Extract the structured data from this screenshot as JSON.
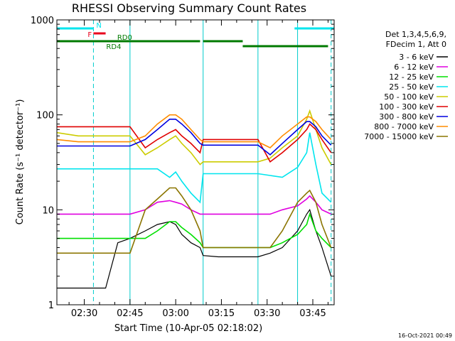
{
  "chart_data": {
    "type": "line",
    "title": "RHESSI Observing Summary Count Rates",
    "xlabel": "Start Time (10-Apr-05 02:18:02)",
    "ylabel": "Count Rate (s⁻¹ detector⁻¹)",
    "y_scale": "log",
    "ylim": [
      1,
      1000
    ],
    "xlim": [
      "02:21",
      "03:52"
    ],
    "y_tick_labels": [
      "1",
      "10",
      "100",
      "1000"
    ],
    "x_tick_labels": [
      "02:30",
      "02:45",
      "03:00",
      "03:15",
      "03:30",
      "03:45"
    ],
    "footer_date": "16-Oct-2021 00:49",
    "legend": {
      "header": [
        "Det 1,3,4,5,6,9,",
        "FDecim 1, Att 0"
      ],
      "placement": "right"
    },
    "flags": [
      {
        "label": "N",
        "color": "#00e5ee",
        "segments": [
          [
            "02:21",
            "02:33"
          ],
          [
            "03:39",
            "03:52"
          ]
        ]
      },
      {
        "label": "F",
        "color": "#e8001c",
        "segments": [
          [
            "02:33",
            "02:37"
          ]
        ]
      },
      {
        "label": "RD0",
        "color": "#007a00",
        "segments": [
          [
            "02:33",
            "02:43"
          ]
        ]
      },
      {
        "label": "RD4",
        "color": "#007a00",
        "segments": [
          [
            "02:21",
            "02:45"
          ],
          [
            "02:45",
            "03:08"
          ],
          [
            "03:09",
            "03:22"
          ],
          [
            "03:22",
            "03:50"
          ]
        ]
      }
    ],
    "x_markers": [
      {
        "time": "02:33",
        "style": "dashed",
        "color": "#00cccc"
      },
      {
        "time": "02:45",
        "style": "solid",
        "color": "#00cccc"
      },
      {
        "time": "03:09",
        "style": "solid",
        "color": "#00cccc"
      },
      {
        "time": "03:27",
        "style": "solid",
        "color": "#00cccc"
      },
      {
        "time": "03:40",
        "style": "solid",
        "color": "#00cccc"
      },
      {
        "time": "03:51",
        "style": "dashed",
        "color": "#00cccc"
      }
    ],
    "x": [
      "02:21",
      "02:28",
      "02:33",
      "02:37",
      "02:41",
      "02:45",
      "02:50",
      "02:54",
      "02:58",
      "03:00",
      "03:02",
      "03:05",
      "03:08",
      "03:09",
      "03:14",
      "03:19",
      "03:24",
      "03:27",
      "03:31",
      "03:35",
      "03:40",
      "03:43",
      "03:44",
      "03:46",
      "03:48",
      "03:51"
    ],
    "series": [
      {
        "name": "3 - 6 keV",
        "color": "#000000",
        "values": [
          1.5,
          1.5,
          1.5,
          1.5,
          4.5,
          5,
          6,
          7,
          7.5,
          7,
          5.5,
          4.5,
          4,
          3.3,
          3.2,
          3.2,
          3.2,
          3.2,
          3.5,
          4,
          6,
          9,
          10,
          6,
          4,
          2
        ]
      },
      {
        "name": "6 - 12 keV",
        "color": "#e000e0",
        "values": [
          9,
          9,
          9,
          9,
          9,
          9,
          10,
          12,
          12.5,
          12,
          11.5,
          10,
          9,
          9,
          9,
          9,
          9,
          9,
          9,
          10,
          11,
          13,
          14,
          12,
          10,
          9
        ]
      },
      {
        "name": "12 - 25 keV",
        "color": "#00e000",
        "values": [
          5,
          5,
          5,
          5,
          5,
          5,
          5,
          6,
          7.5,
          7.5,
          6.5,
          5.5,
          4.5,
          4,
          4,
          4,
          4,
          4,
          4,
          4.5,
          5.5,
          7,
          9,
          6,
          5,
          4
        ]
      },
      {
        "name": "25 - 50 keV",
        "color": "#00e5ee",
        "values": [
          27,
          27,
          27,
          27,
          27,
          27,
          27,
          27,
          22,
          25,
          20,
          15,
          12,
          24,
          24,
          24,
          24,
          24,
          23,
          22,
          28,
          40,
          65,
          30,
          15,
          12
        ]
      },
      {
        "name": "50 - 100 keV",
        "color": "#cccc00",
        "values": [
          65,
          60,
          60,
          60,
          60,
          60,
          38,
          45,
          55,
          60,
          50,
          40,
          30,
          32,
          32,
          32,
          32,
          32,
          35,
          45,
          60,
          90,
          110,
          70,
          45,
          30
        ]
      },
      {
        "name": "100 - 300 keV",
        "color": "#e00000",
        "values": [
          75,
          75,
          75,
          75,
          75,
          75,
          45,
          55,
          65,
          70,
          60,
          50,
          40,
          55,
          55,
          55,
          55,
          55,
          32,
          40,
          55,
          70,
          80,
          70,
          55,
          40
        ]
      },
      {
        "name": "300 - 800 keV",
        "color": "#0000e0",
        "values": [
          47,
          47,
          47,
          47,
          47,
          47,
          55,
          70,
          90,
          90,
          80,
          65,
          50,
          48,
          48,
          48,
          48,
          48,
          38,
          50,
          70,
          85,
          85,
          75,
          60,
          48
        ]
      },
      {
        "name": "800 - 7000 keV",
        "color": "#ff8c00",
        "values": [
          55,
          52,
          52,
          52,
          52,
          52,
          60,
          80,
          100,
          100,
          90,
          70,
          55,
          52,
          52,
          52,
          52,
          52,
          45,
          60,
          80,
          95,
          95,
          85,
          70,
          55
        ]
      },
      {
        "name": "7000 - 15000 keV",
        "color": "#8b7500",
        "values": [
          3.5,
          3.5,
          3.5,
          3.5,
          3.5,
          3.5,
          10,
          13,
          17,
          17,
          14,
          10,
          6,
          4,
          4,
          4,
          4,
          4,
          4,
          6,
          12,
          15,
          16,
          12,
          7,
          4
        ]
      }
    ]
  }
}
